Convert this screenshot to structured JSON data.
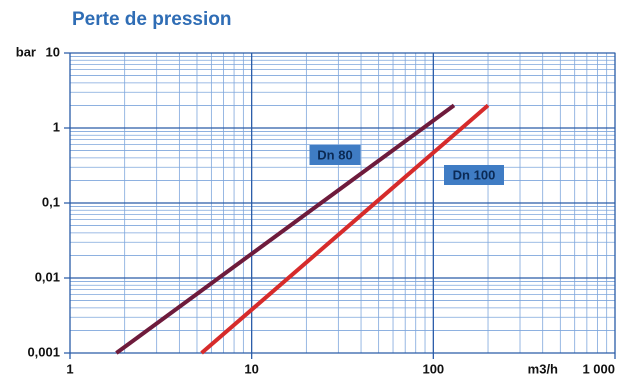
{
  "chart_data": {
    "type": "line",
    "title": "Perte de pression",
    "xlabel": "m3/h",
    "ylabel": "bar",
    "log_x": true,
    "log_y": true,
    "grid": true,
    "xlim": [
      1,
      1000
    ],
    "ylim": [
      0.001,
      10
    ],
    "xticks": [
      1,
      10,
      100,
      {
        "value": 1000,
        "label": "1 000"
      }
    ],
    "yticks": [
      {
        "value": 0.001,
        "label": "0,001"
      },
      {
        "value": 0.01,
        "label": "0,01"
      },
      {
        "value": 0.1,
        "label": "0,1"
      },
      1,
      10
    ],
    "series": [
      {
        "name": "Dn 80",
        "color": "#6e1b3c",
        "x": [
          1.8,
          130
        ],
        "values": [
          0.001,
          2
        ]
      },
      {
        "name": "Dn 100",
        "color": "#d62b2b",
        "x": [
          5.3,
          200
        ],
        "values": [
          0.001,
          2
        ]
      }
    ]
  }
}
